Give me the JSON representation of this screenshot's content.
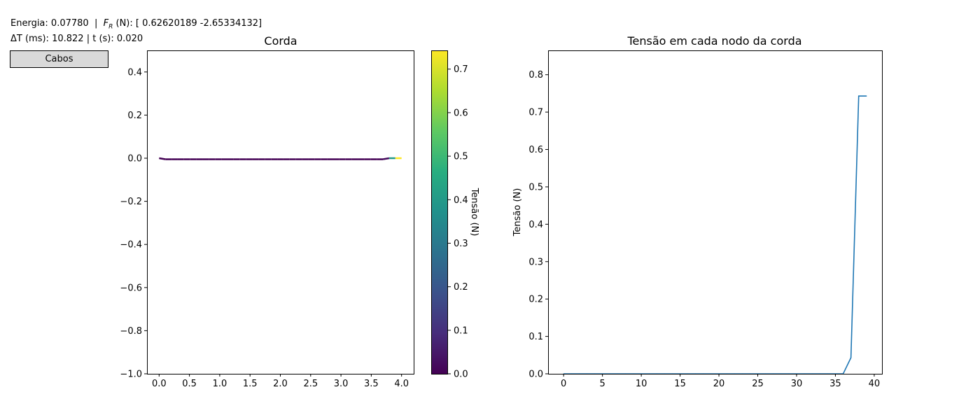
{
  "info": {
    "energy_label": "Energia:",
    "energy_value": "0.07780",
    "sep": "|",
    "force_symbol": "F",
    "force_sub": "R",
    "force_unit": "(N):",
    "force_value": "[ 0.62620189 -2.65334132]",
    "dt_label": "ΔT (ms):",
    "dt_value": "10.822",
    "t_label": "t (s):",
    "t_value": "0.020"
  },
  "button": {
    "label": "Cabos"
  },
  "chart_data": [
    {
      "type": "line",
      "title": "Corda",
      "xlim": [
        -0.2,
        4.2
      ],
      "ylim": [
        -1.0,
        0.5
      ],
      "xticks": [
        "0.0",
        "0.5",
        "1.0",
        "1.5",
        "2.0",
        "2.5",
        "3.0",
        "3.5",
        "4.0"
      ],
      "yticks": [
        "−1.0",
        "−0.8",
        "−0.6",
        "−0.4",
        "−0.2",
        "0.0",
        "0.2",
        "0.4"
      ],
      "colormap": "viridis",
      "colorbar": {
        "label": "Tensão (N)",
        "range": [
          0,
          0.743
        ],
        "ticks": [
          "0.0",
          "0.1",
          "0.2",
          "0.3",
          "0.4",
          "0.5",
          "0.6",
          "0.7"
        ]
      },
      "string": {
        "x": [
          0.0,
          0.1026,
          0.2051,
          0.3077,
          0.4103,
          0.5128,
          0.6154,
          0.7179,
          0.8205,
          0.9231,
          1.0256,
          1.1282,
          1.2308,
          1.3333,
          1.4359,
          1.5385,
          1.641,
          1.7436,
          1.8462,
          1.9487,
          2.0513,
          2.1538,
          2.2564,
          2.359,
          2.4615,
          2.5641,
          2.6667,
          2.7692,
          2.8718,
          2.9744,
          3.0769,
          3.1795,
          3.2821,
          3.3846,
          3.4872,
          3.5897,
          3.6923,
          3.7949,
          3.8974,
          4.0
        ],
        "y": [
          0.0,
          -0.005,
          -0.005,
          -0.005,
          -0.005,
          -0.005,
          -0.005,
          -0.005,
          -0.005,
          -0.005,
          -0.005,
          -0.005,
          -0.005,
          -0.005,
          -0.005,
          -0.005,
          -0.005,
          -0.005,
          -0.005,
          -0.005,
          -0.005,
          -0.005,
          -0.005,
          -0.005,
          -0.005,
          -0.005,
          -0.005,
          -0.005,
          -0.005,
          -0.005,
          -0.005,
          -0.005,
          -0.005,
          -0.005,
          -0.005,
          -0.005,
          -0.005,
          0.0,
          0.0,
          0.0
        ]
      }
    },
    {
      "type": "line",
      "title": "Tensão em cada nodo da corda",
      "ylabel": "Tensão (N)",
      "xlim": [
        -2,
        41
      ],
      "ylim": [
        0,
        0.865
      ],
      "xticks": [
        "0",
        "5",
        "10",
        "15",
        "20",
        "25",
        "30",
        "35",
        "40"
      ],
      "yticks": [
        "0.0",
        "0.1",
        "0.2",
        "0.3",
        "0.4",
        "0.5",
        "0.6",
        "0.7",
        "0.8"
      ],
      "color": "#1f77b4",
      "x": [
        0,
        1,
        2,
        3,
        4,
        5,
        6,
        7,
        8,
        9,
        10,
        11,
        12,
        13,
        14,
        15,
        16,
        17,
        18,
        19,
        20,
        21,
        22,
        23,
        24,
        25,
        26,
        27,
        28,
        29,
        30,
        31,
        32,
        33,
        34,
        35,
        36,
        37,
        38,
        39
      ],
      "values": [
        0,
        0,
        0,
        0,
        0,
        0,
        0,
        0,
        0,
        0,
        0,
        0,
        0,
        0,
        0,
        0,
        0,
        0,
        0,
        0,
        0,
        0,
        0,
        0,
        0,
        0,
        0,
        0,
        0,
        0,
        0,
        0,
        0,
        0,
        0,
        0,
        0,
        0.043,
        0.743,
        0.743
      ]
    }
  ]
}
